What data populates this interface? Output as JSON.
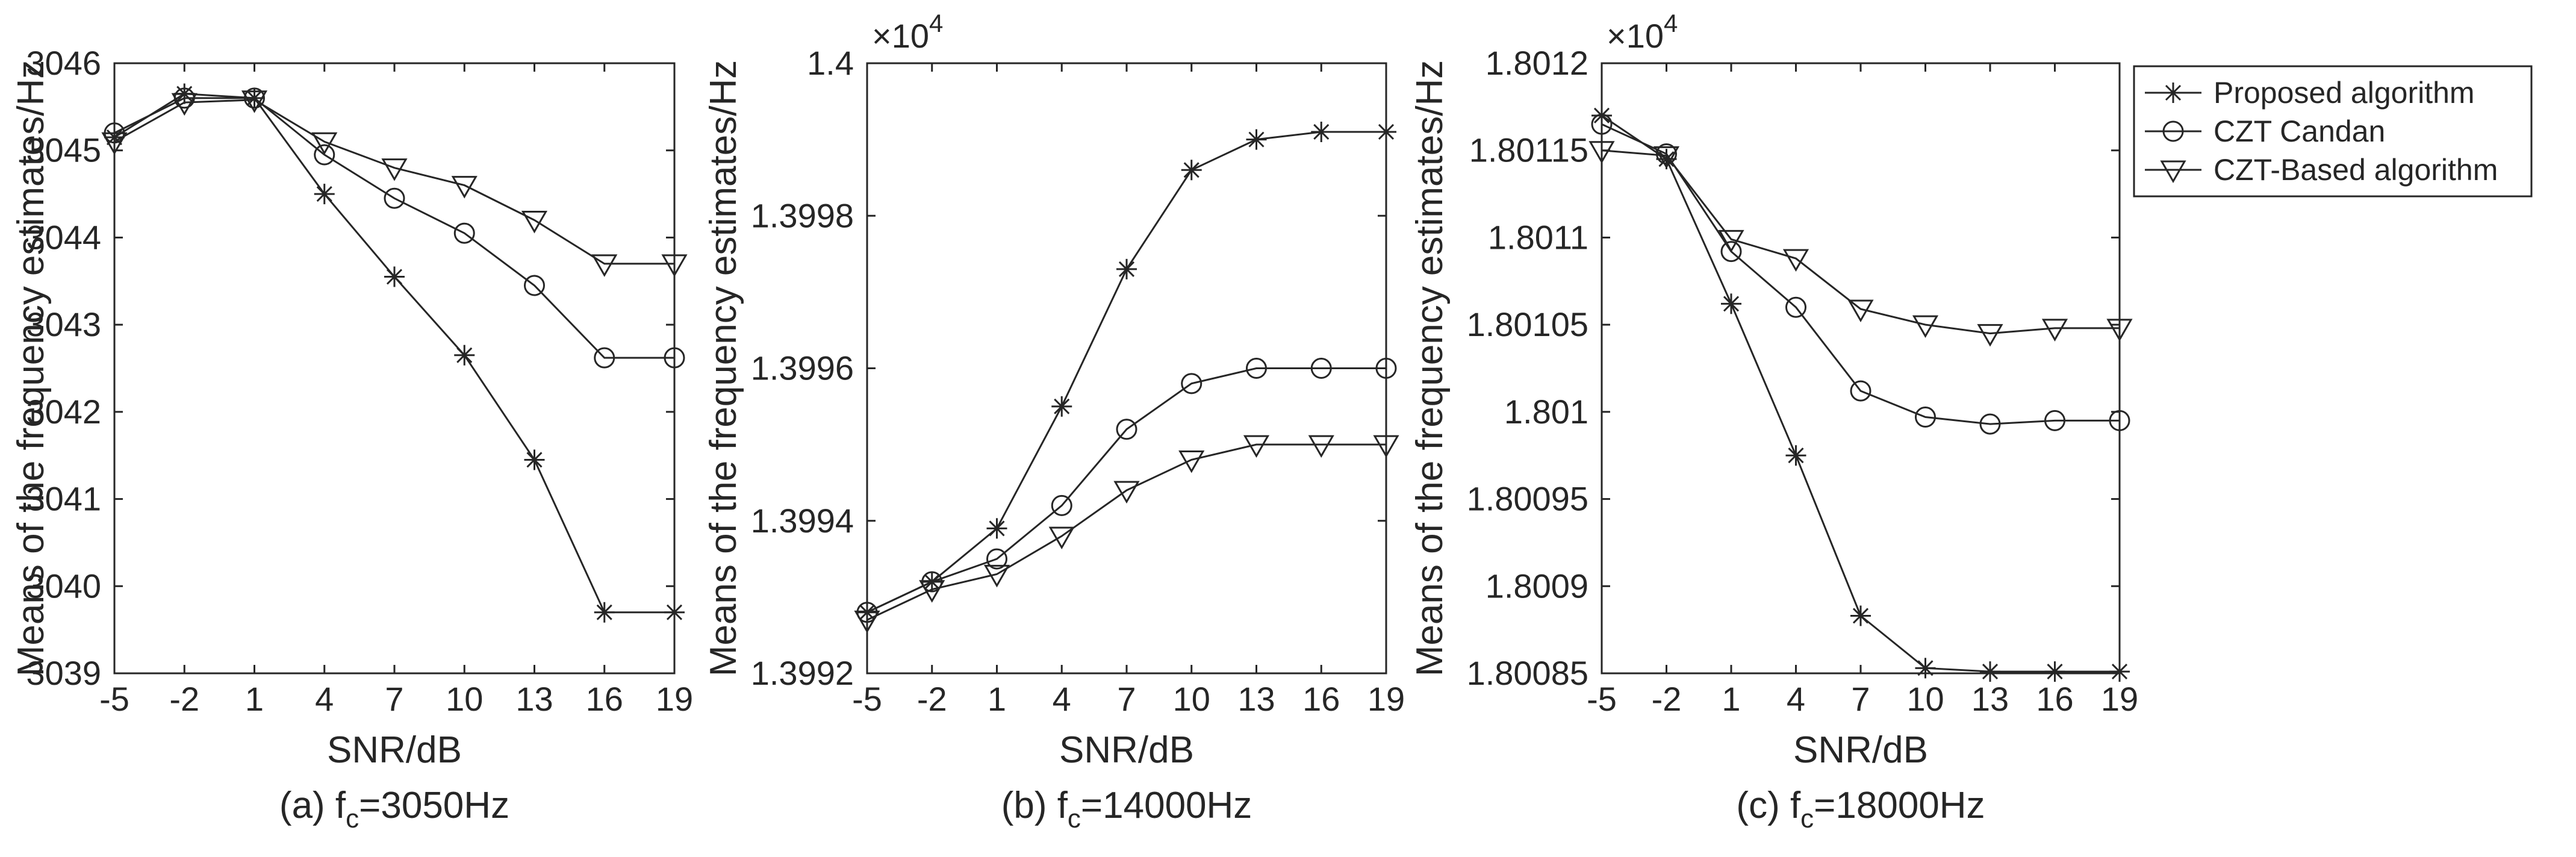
{
  "chart_data": [
    {
      "type": "line",
      "id": "a",
      "caption": "(a) f",
      "caption_sub": "c",
      "caption_rest": "=3050Hz",
      "xlabel": "SNR/dB",
      "ylabel": "Means of the frequency estimates/Hz",
      "exponent_label": "",
      "x": [
        -5,
        -2,
        1,
        4,
        7,
        10,
        13,
        16,
        19
      ],
      "xlim": [
        -5,
        19
      ],
      "ylim": [
        3039,
        3046
      ],
      "yticks": [
        3039,
        3040,
        3041,
        3042,
        3043,
        3044,
        3045,
        3046
      ],
      "ytick_labels": [
        "3039",
        "3040",
        "3041",
        "3042",
        "3043",
        "3044",
        "3045",
        "3046"
      ],
      "series": [
        {
          "name": "Proposed algorithm",
          "marker": "star",
          "values": [
            3045.15,
            3045.65,
            3045.6,
            3044.5,
            3043.55,
            3042.65,
            3041.45,
            3039.7,
            3039.7
          ]
        },
        {
          "name": "CZT Candan",
          "marker": "circle",
          "values": [
            3045.2,
            3045.6,
            3045.6,
            3044.95,
            3044.45,
            3044.05,
            3043.45,
            3042.62,
            3042.62
          ]
        },
        {
          "name": "CZT-Based algorithm",
          "marker": "triangle",
          "values": [
            3045.1,
            3045.55,
            3045.58,
            3045.1,
            3044.8,
            3044.6,
            3044.2,
            3043.7,
            3043.7
          ]
        }
      ]
    },
    {
      "type": "line",
      "id": "b",
      "caption": "(b) f",
      "caption_sub": "c",
      "caption_rest": "=14000Hz",
      "xlabel": "SNR/dB",
      "ylabel": "Means of the frequency estimates/Hz",
      "exponent_label": "×10",
      "exponent_power": "4",
      "x": [
        -5,
        -2,
        1,
        4,
        7,
        10,
        13,
        16,
        19
      ],
      "xlim": [
        -5,
        19
      ],
      "ylim": [
        1.3992,
        1.4
      ],
      "yticks": [
        1.3992,
        1.3994,
        1.3996,
        1.3998,
        1.4
      ],
      "ytick_labels": [
        "1.3992",
        "1.3994",
        "1.3996",
        "1.3998",
        "1.4"
      ],
      "series": [
        {
          "name": "Proposed algorithm",
          "marker": "star",
          "values": [
            1.39928,
            1.39932,
            1.39939,
            1.39955,
            1.39973,
            1.39986,
            1.3999,
            1.39991,
            1.39991
          ]
        },
        {
          "name": "CZT Candan",
          "marker": "circle",
          "values": [
            1.39928,
            1.39932,
            1.39935,
            1.39942,
            1.39952,
            1.39958,
            1.3996,
            1.3996,
            1.3996
          ]
        },
        {
          "name": "CZT-Based algorithm",
          "marker": "triangle",
          "values": [
            1.39927,
            1.39931,
            1.39933,
            1.39938,
            1.39944,
            1.39948,
            1.3995,
            1.3995,
            1.3995
          ]
        }
      ]
    },
    {
      "type": "line",
      "id": "c",
      "caption": "(c) f",
      "caption_sub": "c",
      "caption_rest": "=18000Hz",
      "xlabel": "SNR/dB",
      "ylabel": "Means of the frequency estimates/Hz",
      "exponent_label": "×10",
      "exponent_power": "4",
      "x": [
        -5,
        -2,
        1,
        4,
        7,
        10,
        13,
        16,
        19
      ],
      "xlim": [
        -5,
        19
      ],
      "ylim": [
        1.80085,
        1.8012
      ],
      "yticks": [
        1.80085,
        1.8009,
        1.80095,
        1.801,
        1.80105,
        1.8011,
        1.80115,
        1.8012
      ],
      "ytick_labels": [
        "1.80085",
        "1.8009",
        "1.80095",
        "1.801",
        "1.80105",
        "1.8011",
        "1.80115",
        "1.8012"
      ],
      "series": [
        {
          "name": "Proposed algorithm",
          "marker": "star",
          "values": [
            1.80117,
            1.801145,
            1.801062,
            1.800975,
            1.800883,
            1.800853,
            1.800851,
            1.800851,
            1.800851
          ]
        },
        {
          "name": "CZT Candan",
          "marker": "circle",
          "values": [
            1.801165,
            1.801148,
            1.801092,
            1.80106,
            1.801012,
            1.800997,
            1.800993,
            1.800995,
            1.800995
          ]
        },
        {
          "name": "CZT-Based algorithm",
          "marker": "triangle",
          "values": [
            1.80115,
            1.801147,
            1.801099,
            1.801088,
            1.801059,
            1.80105,
            1.801045,
            1.801048,
            1.801048
          ]
        }
      ]
    }
  ],
  "legend": {
    "placement": "right",
    "entries": [
      "Proposed algorithm",
      "CZT Candan",
      "CZT-Based algorithm"
    ]
  }
}
